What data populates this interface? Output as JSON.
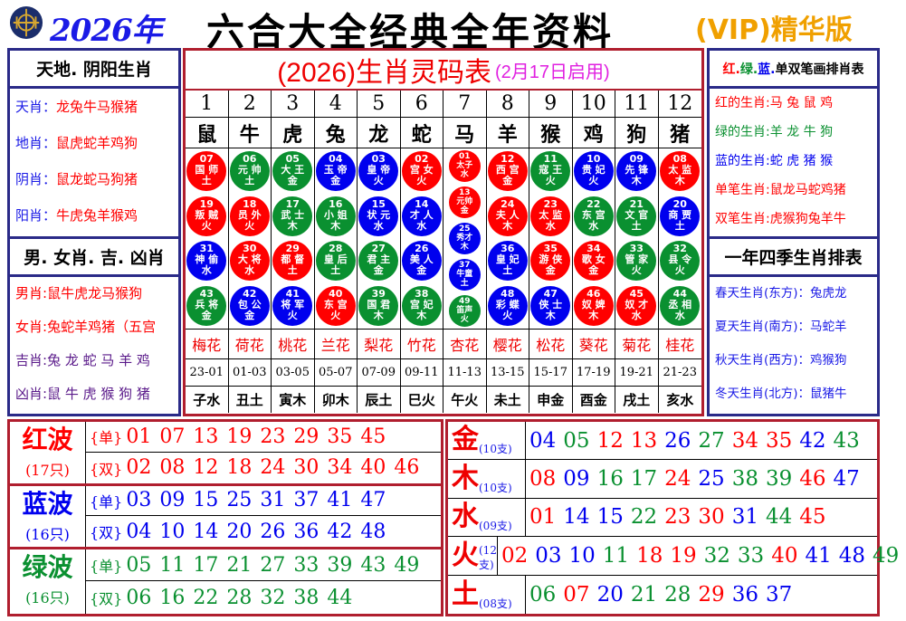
{
  "header": {
    "year": "2026年",
    "title": "六合大全经典全年资料",
    "vip": "(VIP)精华版"
  },
  "colors": {
    "red": "#ff0000",
    "blue": "#0000ee",
    "green": "#0a9030"
  },
  "left_top": {
    "title": "天地. 阴阳生肖",
    "rows": [
      {
        "label": "天肖：",
        "value": "龙兔牛马猴猪"
      },
      {
        "label": "地肖：",
        "value": "鼠虎蛇羊鸡狗"
      },
      {
        "label": "阴肖：",
        "value": "鼠龙蛇马狗猪"
      },
      {
        "label": "阳肖：",
        "value": "牛虎兔羊猴鸡"
      }
    ]
  },
  "left_bottom": {
    "title": "男. 女肖. 吉. 凶肖",
    "rows": [
      {
        "label": "男肖:",
        "value": "鼠牛虎龙马猴狗",
        "color": "#ff0000"
      },
      {
        "label": "女肖:",
        "value": "兔蛇羊鸡猪（五宫",
        "color": "#ff0000"
      },
      {
        "label": "吉肖:",
        "value": "兔 龙 蛇 马 羊 鸡",
        "color": "#5a1a8a"
      },
      {
        "label": "凶肖:",
        "value": "鼠 牛 虎 猴 狗 猪",
        "color": "#5a1a8a"
      }
    ]
  },
  "right_top": {
    "title_parts": [
      {
        "t": "红.",
        "c": "#ff0000"
      },
      {
        "t": "绿.",
        "c": "#0a9030"
      },
      {
        "t": "蓝.",
        "c": "#0000ee"
      },
      {
        "t": "单双笔画排肖表",
        "c": "#000"
      }
    ],
    "rows": [
      {
        "label": "红的生肖:",
        "value": "马 兔 鼠 鸡",
        "color": "#ff0000"
      },
      {
        "label": "绿的生肖:",
        "value": "羊 龙 牛 狗",
        "color": "#0a9030"
      },
      {
        "label": "蓝的生肖:",
        "value": "蛇 虎 猪 猴",
        "color": "#0000ee"
      },
      {
        "label": "单笔生肖:",
        "value": "鼠龙马蛇鸡猪",
        "color": "#ff0000"
      },
      {
        "label": "双笔生肖:",
        "value": "虎猴狗兔羊牛",
        "color": "#ff0000"
      }
    ]
  },
  "right_bottom": {
    "title": "一年四季生肖排表",
    "rows": [
      {
        "label": "春天生肖(东方)：",
        "value": "兔虎龙"
      },
      {
        "label": "夏天生肖(南方)：",
        "value": "马蛇羊"
      },
      {
        "label": "秋天生肖(西方)：",
        "value": "鸡猴狗"
      },
      {
        "label": "冬天生肖(北方)：",
        "value": "鼠猪牛"
      }
    ]
  },
  "zodiac_table": {
    "title": "(2026)生肖灵码表",
    "subtitle": "(2月17日启用)",
    "columns": [
      {
        "num": "1",
        "zodiac": "鼠",
        "flower": "梅花",
        "time": "23-01",
        "branch": "子水",
        "balls": [
          [
            "07",
            "国 师",
            "土"
          ],
          [
            "19",
            "叛 贼",
            "火"
          ],
          [
            "31",
            "神 偷",
            "水"
          ],
          [
            "43",
            "兵 将",
            "金"
          ]
        ]
      },
      {
        "num": "2",
        "zodiac": "牛",
        "flower": "荷花",
        "time": "01-03",
        "branch": "丑土",
        "balls": [
          [
            "06",
            "元 帅",
            "土"
          ],
          [
            "18",
            "员 外",
            "火"
          ],
          [
            "30",
            "大 将",
            "水"
          ],
          [
            "42",
            "包 公",
            "金"
          ]
        ]
      },
      {
        "num": "3",
        "zodiac": "虎",
        "flower": "桃花",
        "time": "03-05",
        "branch": "寅木",
        "balls": [
          [
            "05",
            "大 王",
            "金"
          ],
          [
            "17",
            "武 士",
            "木"
          ],
          [
            "29",
            "都 督",
            "土"
          ],
          [
            "41",
            "将 军",
            "火"
          ]
        ]
      },
      {
        "num": "4",
        "zodiac": "兔",
        "flower": "兰花",
        "time": "05-07",
        "branch": "卯木",
        "balls": [
          [
            "04",
            "玉 帝",
            "金"
          ],
          [
            "16",
            "小 姐",
            "木"
          ],
          [
            "28",
            "皇 后",
            "土"
          ],
          [
            "40",
            "东 宫",
            "火"
          ]
        ]
      },
      {
        "num": "5",
        "zodiac": "龙",
        "flower": "梨花",
        "time": "07-09",
        "branch": "辰土",
        "balls": [
          [
            "03",
            "皇 帝",
            "火"
          ],
          [
            "15",
            "状 元",
            "水"
          ],
          [
            "27",
            "君 主",
            "金"
          ],
          [
            "39",
            "国 君",
            "木"
          ]
        ]
      },
      {
        "num": "6",
        "zodiac": "蛇",
        "flower": "竹花",
        "time": "09-11",
        "branch": "巳火",
        "balls": [
          [
            "02",
            "宫 女",
            "火"
          ],
          [
            "14",
            "才 人",
            "水"
          ],
          [
            "26",
            "美 人",
            "金"
          ],
          [
            "38",
            "宫 妃",
            "木"
          ]
        ]
      },
      {
        "num": "7",
        "zodiac": "马",
        "flower": "杏花",
        "time": "11-13",
        "branch": "午火",
        "balls": [
          [
            "01",
            "太子",
            "水"
          ],
          [
            "13",
            "元帅",
            "金"
          ],
          [
            "25",
            "秀才",
            "木"
          ],
          [
            "37",
            "牛童",
            "土"
          ],
          [
            "49",
            "笛声",
            "火"
          ]
        ]
      },
      {
        "num": "8",
        "zodiac": "羊",
        "flower": "樱花",
        "time": "13-15",
        "branch": "未土",
        "balls": [
          [
            "12",
            "西 宫",
            "金"
          ],
          [
            "24",
            "夫 人",
            "木"
          ],
          [
            "36",
            "皇 妃",
            "土"
          ],
          [
            "48",
            "彩 蝶",
            "火"
          ]
        ]
      },
      {
        "num": "9",
        "zodiac": "猴",
        "flower": "松花",
        "time": "15-17",
        "branch": "申金",
        "balls": [
          [
            "11",
            "寇 王",
            "火"
          ],
          [
            "23",
            "太 监",
            "水"
          ],
          [
            "35",
            "游 侠",
            "金"
          ],
          [
            "47",
            "侠 士",
            "木"
          ]
        ]
      },
      {
        "num": "10",
        "zodiac": "鸡",
        "flower": "葵花",
        "time": "17-19",
        "branch": "酉金",
        "balls": [
          [
            "10",
            "贵 妃",
            "火"
          ],
          [
            "22",
            "东 宫",
            "水"
          ],
          [
            "34",
            "歌 女",
            "金"
          ],
          [
            "46",
            "奴 婢",
            "木"
          ]
        ]
      },
      {
        "num": "11",
        "zodiac": "狗",
        "flower": "菊花",
        "time": "19-21",
        "branch": "戌土",
        "balls": [
          [
            "09",
            "先 锋",
            "木"
          ],
          [
            "21",
            "文 官",
            "土"
          ],
          [
            "33",
            "管 家",
            "火"
          ],
          [
            "45",
            "奴 才",
            "水"
          ]
        ]
      },
      {
        "num": "12",
        "zodiac": "猪",
        "flower": "桂花",
        "time": "21-23",
        "branch": "亥水",
        "balls": [
          [
            "08",
            "太 监",
            "木"
          ],
          [
            "20",
            "商 贾",
            "土"
          ],
          [
            "32",
            "县 令",
            "火"
          ],
          [
            "44",
            "丞 相",
            "水"
          ]
        ]
      }
    ]
  },
  "waves": [
    {
      "name": "红波",
      "count": "(17只)",
      "color": "red",
      "odd_label": "{单}",
      "odd": [
        "01",
        "07",
        "13",
        "19",
        "23",
        "29",
        "35",
        "45"
      ],
      "even_label": "{双}",
      "even": [
        "02",
        "08",
        "12",
        "18",
        "24",
        "30",
        "34",
        "40",
        "46"
      ]
    },
    {
      "name": "蓝波",
      "count": "(16只)",
      "color": "blue",
      "odd_label": "{单}",
      "odd": [
        "03",
        "09",
        "15",
        "25",
        "31",
        "37",
        "41",
        "47"
      ],
      "even_label": "{双}",
      "even": [
        "04",
        "10",
        "14",
        "20",
        "26",
        "36",
        "42",
        "48"
      ]
    },
    {
      "name": "绿波",
      "count": "(16只)",
      "color": "green",
      "odd_label": "{单}",
      "odd": [
        "05",
        "11",
        "17",
        "21",
        "27",
        "33",
        "39",
        "43",
        "49"
      ],
      "even_label": "{双}",
      "even": [
        "06",
        "16",
        "22",
        "28",
        "32",
        "38",
        "44"
      ]
    }
  ],
  "elements": [
    {
      "name": "金",
      "count": "(10支)",
      "numbers": [
        "04",
        "05",
        "12",
        "13",
        "26",
        "27",
        "34",
        "35",
        "42",
        "43"
      ]
    },
    {
      "name": "木",
      "count": "(10支)",
      "numbers": [
        "08",
        "09",
        "16",
        "17",
        "24",
        "25",
        "38",
        "39",
        "46",
        "47"
      ]
    },
    {
      "name": "水",
      "count": "(09支)",
      "numbers": [
        "01",
        "14",
        "15",
        "22",
        "23",
        "30",
        "31",
        "44",
        "45"
      ]
    },
    {
      "name": "火",
      "count": "(12支)",
      "numbers": [
        "02",
        "03",
        "10",
        "11",
        "18",
        "19",
        "32",
        "33",
        "40",
        "41",
        "48",
        "49"
      ]
    },
    {
      "name": "土",
      "count": "(08支)",
      "numbers": [
        "06",
        "07",
        "20",
        "21",
        "28",
        "29",
        "36",
        "37"
      ]
    }
  ]
}
